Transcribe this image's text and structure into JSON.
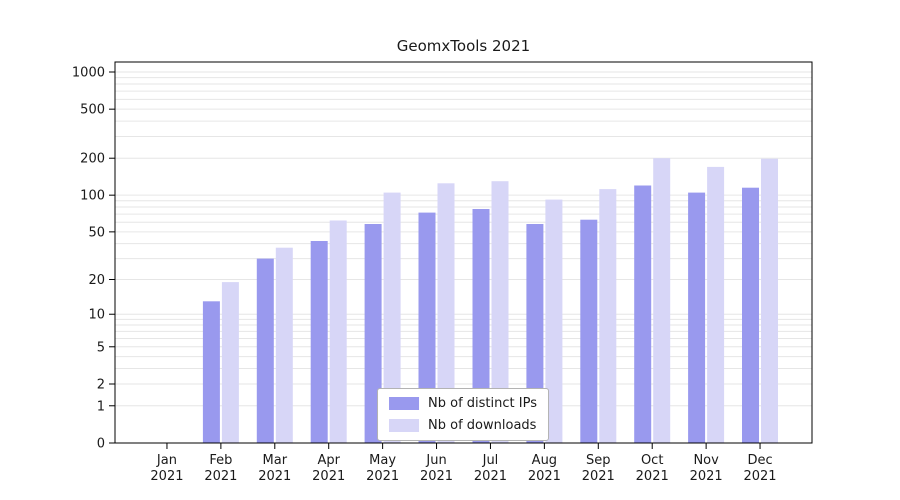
{
  "chart_data": {
    "type": "bar",
    "title": "GeomxTools 2021",
    "scale": "log1p",
    "categories": [
      "Jan",
      "Feb",
      "Mar",
      "Apr",
      "May",
      "Jun",
      "Jul",
      "Aug",
      "Sep",
      "Oct",
      "Nov",
      "Dec"
    ],
    "category_year": "2021",
    "series": [
      {
        "name": "Nb of distinct IPs",
        "color": "#9999ee",
        "values": [
          0,
          13,
          30,
          42,
          58,
          72,
          77,
          58,
          63,
          120,
          105,
          115
        ]
      },
      {
        "name": "Nb of downloads",
        "color": "#d7d6f7",
        "values": [
          0,
          19,
          37,
          62,
          105,
          125,
          130,
          92,
          112,
          200,
          170,
          198
        ]
      }
    ],
    "y_ticks": [
      0,
      1,
      2,
      5,
      10,
      20,
      50,
      100,
      200,
      500,
      1000
    ],
    "ylim": [
      0,
      1000
    ],
    "grid": "horizontal-minor",
    "legend_position": "lower center"
  },
  "colors": {
    "grid": "#e6e6e6",
    "axis": "#000000",
    "text": "#1a1a1a",
    "background": "#ffffff"
  }
}
